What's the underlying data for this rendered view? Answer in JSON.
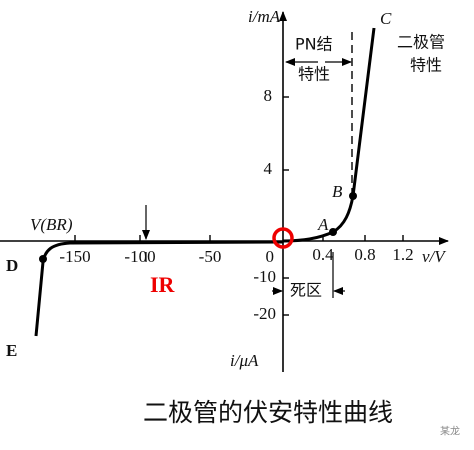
{
  "axes": {
    "y_label_top": "i/mA",
    "x_label": "v/V",
    "y_label_bottom": "i/μA",
    "y_ticks_pos": [
      "8",
      "4"
    ],
    "x_ticks_pos": [
      "0.4",
      "0.8",
      "1.2"
    ],
    "x_ticks_neg": [
      "-150",
      "-100",
      "-50"
    ],
    "y_ticks_neg": [
      "-10",
      "-20"
    ],
    "origin": "0"
  },
  "points": {
    "A": "A",
    "B": "B",
    "C": "C",
    "D": "D",
    "E": "E"
  },
  "annotations": {
    "pn_1": "PN结",
    "pn_2": "特性",
    "diode_1": "二极管",
    "diode_2": "特性",
    "breakdown": "V(BR)",
    "reverse_current": "IR",
    "dead_zone": "死区"
  },
  "caption": "二极管的伏安特性曲线",
  "watermark": "某龙"
}
